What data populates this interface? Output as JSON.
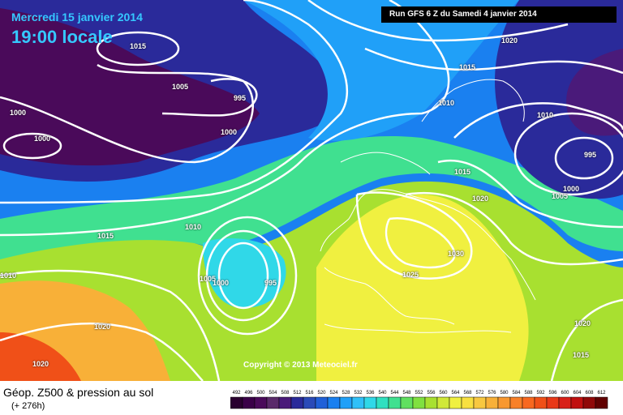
{
  "header": {
    "date_line": "Mercredi 15 janvier 2014",
    "time_line": "19:00 locale",
    "run_info": "Run GFS 6 Z du Samedi 4 janvier 2014"
  },
  "copyright": "Copyright © 2013 Meteociel.fr",
  "caption": {
    "title": "Géop. Z500 & pression au sol",
    "lead_time": "(+ 276h)"
  },
  "legend": {
    "values": [
      "492",
      "496",
      "500",
      "504",
      "508",
      "512",
      "516",
      "520",
      "524",
      "528",
      "532",
      "536",
      "540",
      "544",
      "548",
      "552",
      "556",
      "560",
      "564",
      "568",
      "572",
      "576",
      "580",
      "584",
      "588",
      "592",
      "596",
      "600",
      "604",
      "608",
      "612"
    ],
    "colors": [
      "#2a0030",
      "#3a0048",
      "#4a0a5a",
      "#5a2a6a",
      "#4a1a7a",
      "#2a2a9a",
      "#2a4ab8",
      "#2060d8",
      "#1a80f0",
      "#20a0f8",
      "#30c0f8",
      "#30d8e8",
      "#30e0c0",
      "#40e090",
      "#60e060",
      "#80e040",
      "#a8e030",
      "#d0e838",
      "#f0f040",
      "#f8e040",
      "#f8c840",
      "#f8b038",
      "#f89830",
      "#f88028",
      "#f86820",
      "#f05018",
      "#e83818",
      "#d82018",
      "#c01010",
      "#900808",
      "#600000"
    ]
  },
  "isobar_labels": [
    {
      "id": "iso-1015-nw",
      "text": "1015"
    },
    {
      "id": "iso-1005-n",
      "text": "1005"
    },
    {
      "id": "iso-995-n",
      "text": "995"
    },
    {
      "id": "iso-1000-w1",
      "text": "1000"
    },
    {
      "id": "iso-1000-w2",
      "text": "1000"
    },
    {
      "id": "iso-1000-c",
      "text": "1000"
    },
    {
      "id": "iso-1020-ne",
      "text": "1020"
    },
    {
      "id": "iso-1015-ne",
      "text": "1015"
    },
    {
      "id": "iso-1010-ne",
      "text": "1010"
    },
    {
      "id": "iso-1010-e",
      "text": "1010"
    },
    {
      "id": "iso-995-e",
      "text": "995"
    },
    {
      "id": "iso-1000-e",
      "text": "1000"
    },
    {
      "id": "iso-1005-e",
      "text": "1005"
    },
    {
      "id": "iso-1015-c",
      "text": "1015"
    },
    {
      "id": "iso-1020-c",
      "text": "1020"
    },
    {
      "id": "iso-1010-c",
      "text": "1010"
    },
    {
      "id": "iso-1015-w",
      "text": "1015"
    },
    {
      "id": "iso-1010-w",
      "text": "1010"
    },
    {
      "id": "iso-1005-l",
      "text": "1005"
    },
    {
      "id": "iso-1000-l",
      "text": "1000"
    },
    {
      "id": "iso-995-l",
      "text": "995"
    },
    {
      "id": "iso-1030",
      "text": "1030"
    },
    {
      "id": "iso-1025",
      "text": "1025"
    },
    {
      "id": "iso-1020-sw",
      "text": "1020"
    },
    {
      "id": "iso-1020-s",
      "text": "1020"
    },
    {
      "id": "iso-1020-se",
      "text": "1020"
    },
    {
      "id": "iso-1015-se",
      "text": "1015"
    }
  ]
}
